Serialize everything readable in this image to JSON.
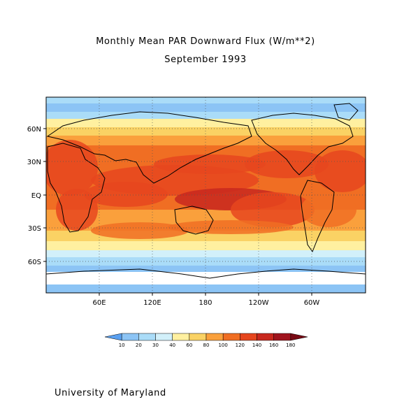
{
  "title": "Monthly Mean PAR Downward Flux (W/m**2)",
  "subtitle": "September 1993",
  "footer": "University of Maryland",
  "chart_data": {
    "type": "heatmap",
    "lat_ticks": [
      "60N",
      "30N",
      "EQ",
      "30S",
      "60S"
    ],
    "lon_ticks": [
      "60E",
      "120E",
      "180",
      "120W",
      "60W"
    ],
    "colorbar": {
      "levels": [
        "10",
        "20",
        "30",
        "40",
        "60",
        "80",
        "100",
        "120",
        "140",
        "160",
        "180"
      ],
      "colors": [
        "#5aa0f0",
        "#8cc4f5",
        "#aadcf8",
        "#d2f0fa",
        "#fff0a0",
        "#fad264",
        "#faa03c",
        "#f06e23",
        "#e6461e",
        "#c8281e",
        "#a0141e",
        "#780a14"
      ]
    },
    "grid": "dotted"
  }
}
